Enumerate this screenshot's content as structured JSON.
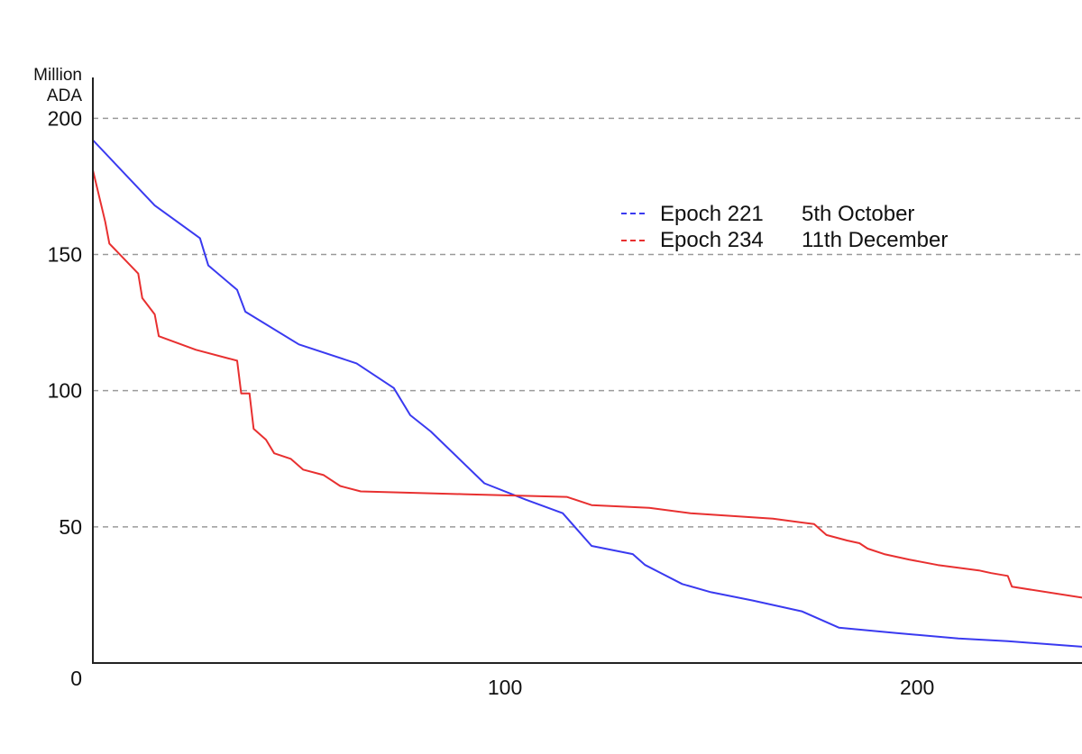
{
  "chart_data": {
    "type": "line",
    "title": "",
    "ylabel_lines": [
      "Million",
      "ADA"
    ],
    "xlabel": "",
    "xlim": [
      0,
      240
    ],
    "ylim": [
      0,
      215
    ],
    "y_ticks": [
      0,
      50,
      100,
      150,
      200
    ],
    "y_tick_labels": [
      "0",
      "50",
      "100",
      "150",
      "200"
    ],
    "x_ticks": [
      100,
      200
    ],
    "x_tick_labels": [
      "100",
      "200"
    ],
    "grid": "horizontal dashed",
    "legend_position": "upper-right",
    "series": [
      {
        "name": "Epoch 221",
        "date": "5th October",
        "color": "#3a3af0",
        "x": [
          0,
          15,
          26,
          28,
          35,
          37,
          50,
          64,
          73,
          77,
          82,
          95,
          105,
          114,
          121,
          131,
          134,
          143,
          150,
          160,
          172,
          181,
          195,
          210,
          222,
          240
        ],
        "y": [
          192,
          168,
          156,
          146,
          137,
          129,
          117,
          110,
          101,
          91,
          85,
          66,
          60,
          55,
          43,
          40,
          36,
          29,
          26,
          23,
          19,
          13,
          11,
          9,
          8,
          6
        ]
      },
      {
        "name": "Epoch 234",
        "date": "11th December",
        "color": "#e83030",
        "x": [
          0,
          3,
          4,
          11,
          12,
          15,
          16,
          25,
          35,
          36,
          38,
          39,
          42,
          44,
          48,
          51,
          56,
          60,
          65,
          90,
          115,
          121,
          135,
          145,
          165,
          175,
          178,
          183,
          186,
          188,
          192,
          198,
          205,
          215,
          218,
          222,
          223,
          240
        ],
        "y": [
          181,
          162,
          154,
          143,
          134,
          128,
          120,
          115,
          111,
          99,
          99,
          86,
          82,
          77,
          75,
          71,
          69,
          65,
          63,
          62,
          61,
          58,
          57,
          55,
          53,
          51,
          47,
          45,
          44,
          42,
          40,
          38,
          36,
          34,
          33,
          32,
          28,
          24
        ]
      }
    ]
  }
}
